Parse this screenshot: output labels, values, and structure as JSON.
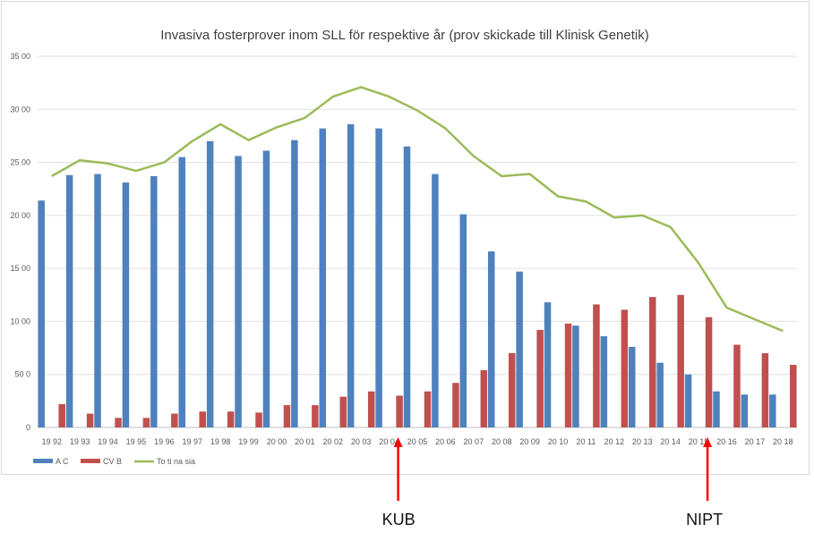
{
  "chart_data": {
    "type": "bar",
    "title": "Invasiva fosterprover inom SLL för respektive år (prov skickade till Klinisk Genetik)",
    "categories": [
      "19 92",
      "19 93",
      "19 94",
      "19 95",
      "19 96",
      "19 97",
      "19 98",
      "19 99",
      "20 00",
      "20 01",
      "20 02",
      "20 03",
      "20 04",
      "20 05",
      "20 06",
      "20 07",
      "20 08",
      "20 09",
      "20 10",
      "20 11",
      "20 12",
      "20 13",
      "20 14",
      "20 15",
      "20 16",
      "20 17",
      "20 18"
    ],
    "series": [
      {
        "name": "A C",
        "type": "bar",
        "color": "#4f81bd",
        "values": [
          2140,
          2380,
          2390,
          2310,
          2370,
          2550,
          2700,
          2560,
          2610,
          2710,
          2820,
          2860,
          2820,
          2650,
          2390,
          2010,
          1660,
          1470,
          1180,
          960,
          860,
          760,
          610,
          500,
          340,
          310,
          310
        ]
      },
      {
        "name": "CV B",
        "type": "bar",
        "color": "#c0504d",
        "values": [
          220,
          130,
          90,
          90,
          130,
          150,
          150,
          140,
          210,
          210,
          290,
          340,
          300,
          340,
          420,
          540,
          700,
          920,
          980,
          1160,
          1110,
          1230,
          1250,
          1040,
          780,
          700,
          590
        ]
      },
      {
        "name": "To ti na sia",
        "type": "line",
        "color": "#9bbb59",
        "values": [
          2370,
          2520,
          2490,
          2420,
          2500,
          2700,
          2860,
          2710,
          2830,
          2920,
          3120,
          3210,
          3120,
          2990,
          2820,
          2560,
          2370,
          2390,
          2180,
          2130,
          1980,
          2000,
          1890,
          1550,
          1130,
          1020,
          910
        ]
      }
    ],
    "yticks": [
      "0",
      "50 0",
      "10 00",
      "15 00",
      "20 00",
      "25 00",
      "30 00",
      "35 00"
    ],
    "ylim": [
      0,
      3500
    ],
    "grid": true,
    "legend_position": "bottom-left"
  },
  "annotations": [
    {
      "label": "KUB",
      "category_index": 12,
      "color": "#ff0000"
    },
    {
      "label": "NIPT",
      "category_index": 23,
      "color": "#ff0000"
    }
  ]
}
